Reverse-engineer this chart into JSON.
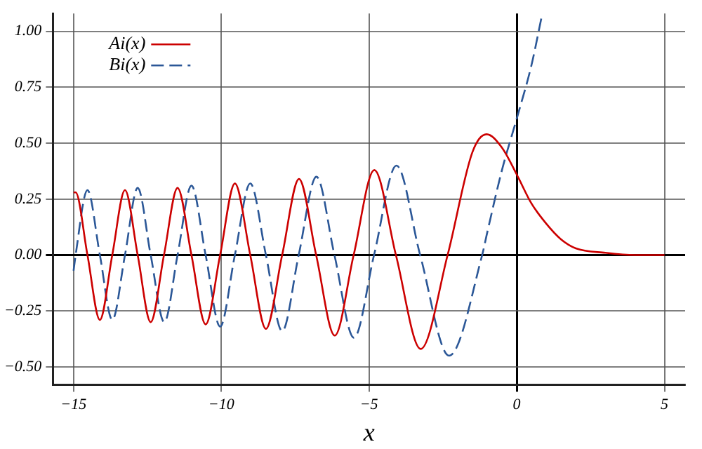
{
  "chart_data": {
    "type": "line",
    "xlabel": "x",
    "legend": "top left",
    "grid": true,
    "marker": "none",
    "xlim": [
      -15.7,
      5.7
    ],
    "ylim": [
      -0.58,
      1.08
    ],
    "xticks": [
      {
        "value": -15,
        "label": "−15"
      },
      {
        "value": -10,
        "label": "−10"
      },
      {
        "value": -5,
        "label": "−5"
      },
      0,
      5
    ],
    "yticks": [
      {
        "value": -0.5,
        "label": "−0.50"
      },
      {
        "value": -0.25,
        "label": "−0.25"
      },
      {
        "value": 0,
        "label": "0.00"
      },
      {
        "value": 0.25,
        "label": "0.25"
      },
      {
        "value": 0.5,
        "label": "0.50"
      },
      {
        "value": 0.75,
        "label": "0.75"
      },
      {
        "value": 1,
        "label": "1.00"
      }
    ],
    "series": [
      {
        "name": "Ai(x)",
        "color": "#cc0000",
        "line_style": "solid",
        "x": [
          -15,
          -14.93,
          -14.53,
          -14.11,
          -13.69,
          -13.26,
          -12.83,
          -12.39,
          -11.94,
          -11.48,
          -11.01,
          -10.53,
          -10.04,
          -9.54,
          -9.02,
          -8.49,
          -7.94,
          -7.37,
          -6.79,
          -6.16,
          -5.52,
          -4.82,
          -4.09,
          -3.25,
          -2.34,
          -1.5,
          -1.02,
          -0.5,
          0,
          0.5,
          1,
          1.5,
          2,
          3,
          4,
          5
        ],
        "values": [
          0.28,
          0.28,
          0,
          -0.29,
          0,
          0.29,
          0,
          -0.3,
          0,
          0.3,
          0,
          -0.31,
          0,
          0.32,
          0,
          -0.33,
          0,
          0.34,
          0,
          -0.36,
          0,
          0.38,
          0,
          -0.42,
          0,
          0.46,
          0.54,
          0.48,
          0.36,
          0.23,
          0.14,
          0.07,
          0.03,
          0.01,
          0,
          0
        ]
      },
      {
        "name": "Bi(x)",
        "color": "#2b5797",
        "line_style": "dashed",
        "x": [
          -15,
          -14.93,
          -14.53,
          -14.11,
          -13.69,
          -13.26,
          -12.83,
          -12.39,
          -11.93,
          -11.48,
          -11.01,
          -10.53,
          -10.04,
          -9.54,
          -9.02,
          -8.49,
          -7.94,
          -7.38,
          -6.78,
          -6.17,
          -5.51,
          -4.83,
          -4.07,
          -3.27,
          -2.29,
          -1.17,
          -1,
          -0.5,
          0,
          0.5,
          0.85
        ],
        "values": [
          -0.07,
          0,
          0.29,
          0,
          -0.29,
          0,
          0.3,
          0,
          -0.3,
          0,
          0.31,
          0,
          -0.32,
          0,
          0.32,
          0,
          -0.34,
          0,
          0.35,
          0,
          -0.37,
          0,
          0.4,
          0,
          -0.45,
          0,
          0.1,
          0.38,
          0.61,
          0.85,
          1.07
        ]
      }
    ]
  }
}
